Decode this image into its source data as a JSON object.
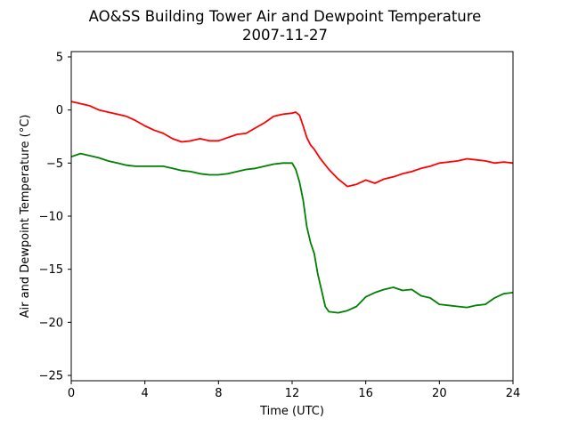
{
  "chart_data": {
    "type": "line",
    "title": "AO&SS Building Tower Air and Dewpoint Temperature",
    "subtitle": "2007-11-27",
    "xlabel": "Time (UTC)",
    "ylabel": "Air and Dewpoint Temperature (°C)",
    "xlim": [
      0,
      24
    ],
    "ylim": [
      -25.5,
      5.5
    ],
    "xticks": [
      "0",
      "4",
      "8",
      "12",
      "16",
      "20",
      "24"
    ],
    "yticks": [
      "5",
      "0",
      "−5",
      "−10",
      "−15",
      "−20",
      "−25"
    ],
    "grid": false,
    "series": [
      {
        "color": "#ff0000",
        "x": [
          0,
          0.5,
          1,
          1.5,
          2,
          2.5,
          3,
          3.5,
          4,
          4.5,
          5,
          5.5,
          6,
          6.5,
          7,
          7.5,
          8,
          8.5,
          9,
          9.5,
          10,
          10.5,
          11,
          11.5,
          12,
          12.2,
          12.4,
          12.6,
          12.8,
          13,
          13.2,
          13.5,
          14,
          14.5,
          15,
          15.5,
          16,
          16.5,
          17,
          17.5,
          18,
          18.5,
          19,
          19.5,
          20,
          20.5,
          21,
          21.5,
          22,
          22.5,
          23,
          23.5,
          24
        ],
        "y": [
          0.8,
          0.6,
          0.4,
          0,
          -0.2,
          -0.4,
          -0.6,
          -1.0,
          -1.5,
          -1.9,
          -2.2,
          -2.7,
          -3.0,
          -2.9,
          -2.7,
          -2.9,
          -2.9,
          -2.6,
          -2.3,
          -2.2,
          -1.7,
          -1.2,
          -0.6,
          -0.4,
          -0.3,
          -0.2,
          -0.5,
          -1.5,
          -2.6,
          -3.3,
          -3.7,
          -4.5,
          -5.6,
          -6.5,
          -7.2,
          -7.0,
          -6.6,
          -6.9,
          -6.5,
          -6.3,
          -6.0,
          -5.8,
          -5.5,
          -5.3,
          -5.0,
          -4.9,
          -4.8,
          -4.6,
          -4.7,
          -4.8,
          -5.0,
          -4.9,
          -5.0
        ]
      },
      {
        "color": "#008000",
        "x": [
          0,
          0.5,
          1,
          1.5,
          2,
          2.5,
          3,
          3.5,
          4,
          4.5,
          5,
          5.5,
          6,
          6.5,
          7,
          7.5,
          8,
          8.5,
          9,
          9.5,
          10,
          10.5,
          11,
          11.5,
          12,
          12.2,
          12.4,
          12.6,
          12.8,
          13,
          13.2,
          13.4,
          13.6,
          13.8,
          14,
          14.5,
          15,
          15.5,
          16,
          16.5,
          17,
          17.5,
          18,
          18.5,
          19,
          19.5,
          20,
          20.5,
          21,
          21.5,
          22,
          22.5,
          23,
          23.5,
          24
        ],
        "y": [
          -4.4,
          -4.1,
          -4.3,
          -4.5,
          -4.8,
          -5.0,
          -5.2,
          -5.3,
          -5.3,
          -5.3,
          -5.3,
          -5.5,
          -5.7,
          -5.8,
          -6.0,
          -6.1,
          -6.1,
          -6.0,
          -5.8,
          -5.6,
          -5.5,
          -5.3,
          -5.1,
          -5.0,
          -5.0,
          -5.6,
          -6.8,
          -8.5,
          -11.0,
          -12.5,
          -13.5,
          -15.5,
          -17.0,
          -18.5,
          -19.0,
          -19.1,
          -18.9,
          -18.5,
          -17.6,
          -17.2,
          -16.9,
          -16.7,
          -17.0,
          -16.9,
          -17.5,
          -17.7,
          -18.3,
          -18.4,
          -18.5,
          -18.6,
          -18.4,
          -18.3,
          -17.7,
          -17.3,
          -17.2
        ]
      }
    ]
  }
}
